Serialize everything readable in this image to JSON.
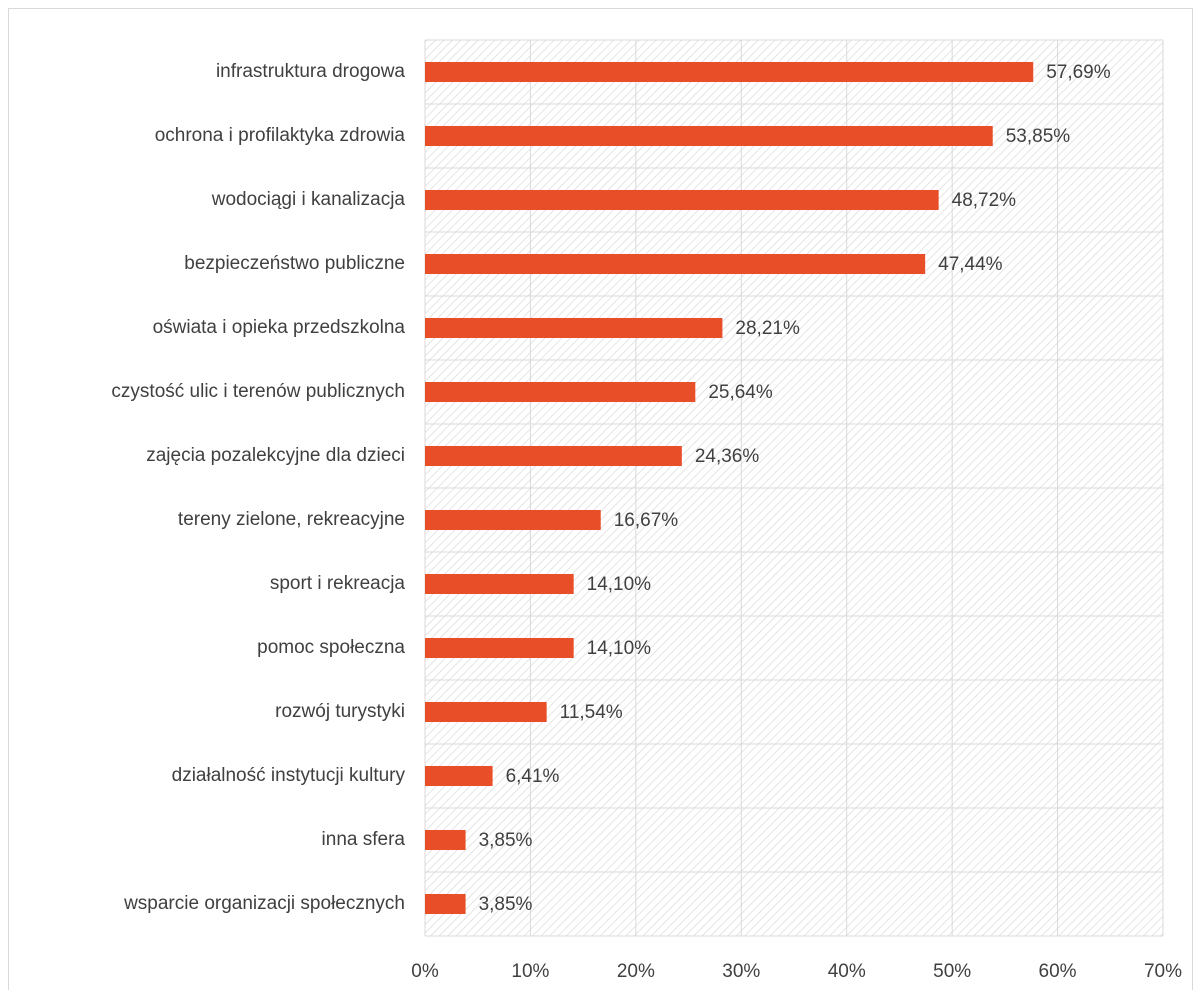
{
  "chart_data": {
    "type": "barh",
    "categories": [
      "infrastruktura drogowa",
      "ochrona i profilaktyka zdrowia",
      "wodociągi i kanalizacja",
      "bezpieczeństwo publiczne",
      "oświata i opieka przedszkolna",
      "czystość ulic i terenów publicznych",
      "zajęcia pozalekcyjne dla dzieci",
      "tereny zielone, rekreacyjne",
      "sport i rekreacja",
      "pomoc społeczna",
      "rozwój turystyki",
      "działalność instytucji kultury",
      "inna sfera",
      "wsparcie organizacji społecznych"
    ],
    "values": [
      57.69,
      53.85,
      48.72,
      47.44,
      28.21,
      25.64,
      24.36,
      16.67,
      14.1,
      14.1,
      11.54,
      6.41,
      3.85,
      3.85
    ],
    "value_labels": [
      "57,69%",
      "53,85%",
      "48,72%",
      "47,44%",
      "28,21%",
      "25,64%",
      "24,36%",
      "16,67%",
      "14,10%",
      "14,10%",
      "11,54%",
      "6,41%",
      "3,85%",
      "3,85%"
    ],
    "color": "#e84e27",
    "xlim": [
      0,
      70
    ],
    "xticks": [
      {
        "value": 0,
        "label": "0%"
      },
      {
        "value": 10,
        "label": "10%"
      },
      {
        "value": 20,
        "label": "20%"
      },
      {
        "value": 30,
        "label": "30%"
      },
      {
        "value": 40,
        "label": "40%"
      },
      {
        "value": 50,
        "label": "50%"
      },
      {
        "value": 60,
        "label": "60%"
      },
      {
        "value": 70,
        "label": "70%"
      }
    ],
    "grid": true
  }
}
